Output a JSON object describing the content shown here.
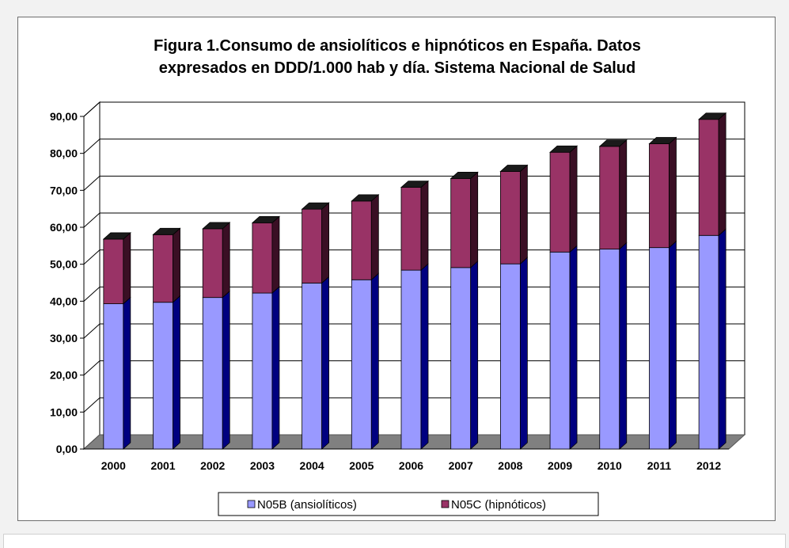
{
  "chart_data": {
    "type": "bar",
    "stacked": true,
    "three_d": true,
    "title_lines": [
      "Figura 1.Consumo de ansiolíticos e hipnóticos en España. Datos",
      "expresados en DDD/1.000 hab y día. Sistema Nacional de Salud"
    ],
    "xlabel": "",
    "ylabel": "",
    "ylim": [
      0,
      90
    ],
    "ytick_step": 10,
    "ytick_labels": [
      "0,00",
      "10,00",
      "20,00",
      "30,00",
      "40,00",
      "50,00",
      "60,00",
      "70,00",
      "80,00",
      "90,00"
    ],
    "grid": true,
    "legend_position": "bottom",
    "categories": [
      "2000",
      "2001",
      "2002",
      "2003",
      "2004",
      "2005",
      "2006",
      "2007",
      "2008",
      "2009",
      "2010",
      "2011",
      "2012"
    ],
    "series": [
      {
        "name": "N05B (ansiolíticos)",
        "color": "#9999ff",
        "values": [
          39.3,
          39.7,
          41.0,
          42.2,
          44.9,
          45.8,
          48.4,
          49.1,
          50.1,
          53.3,
          54.1,
          54.5,
          57.8
        ]
      },
      {
        "name": "N05C (hipnóticos)",
        "color": "#993366",
        "values": [
          17.5,
          18.3,
          18.6,
          19.0,
          20.0,
          21.3,
          22.4,
          24.1,
          25.0,
          27.0,
          27.8,
          28.1,
          31.4
        ]
      }
    ]
  },
  "colors": {
    "wall": "#ffffff",
    "floor": "#808080",
    "grid": "#000000",
    "side_shade": "#000080",
    "top_dark": "#1a1a1a"
  }
}
